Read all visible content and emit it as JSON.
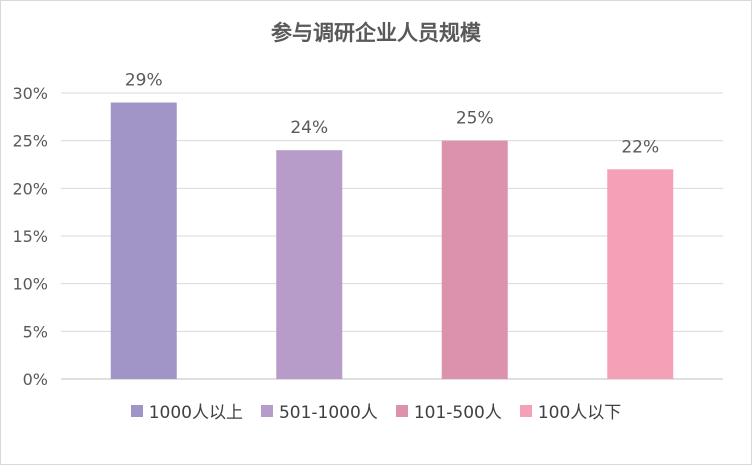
{
  "chart_data": {
    "type": "bar",
    "title": "参与调研企业人员规模",
    "categories": [
      "1000人以上",
      "501-1000人",
      "101-500人",
      "100人以下"
    ],
    "values": [
      29,
      24,
      25,
      22
    ],
    "data_labels": [
      "29%",
      "24%",
      "25%",
      "22%"
    ],
    "colors": [
      "#a195c8",
      "#b79bc8",
      "#dc91ad",
      "#f4a1b8"
    ],
    "ylim": [
      0,
      30
    ],
    "yticks": [
      "0%",
      "5%",
      "10%",
      "15%",
      "20%",
      "25%",
      "30%"
    ],
    "grid": true,
    "legend_position": "bottom",
    "xlabel": "",
    "ylabel": ""
  }
}
